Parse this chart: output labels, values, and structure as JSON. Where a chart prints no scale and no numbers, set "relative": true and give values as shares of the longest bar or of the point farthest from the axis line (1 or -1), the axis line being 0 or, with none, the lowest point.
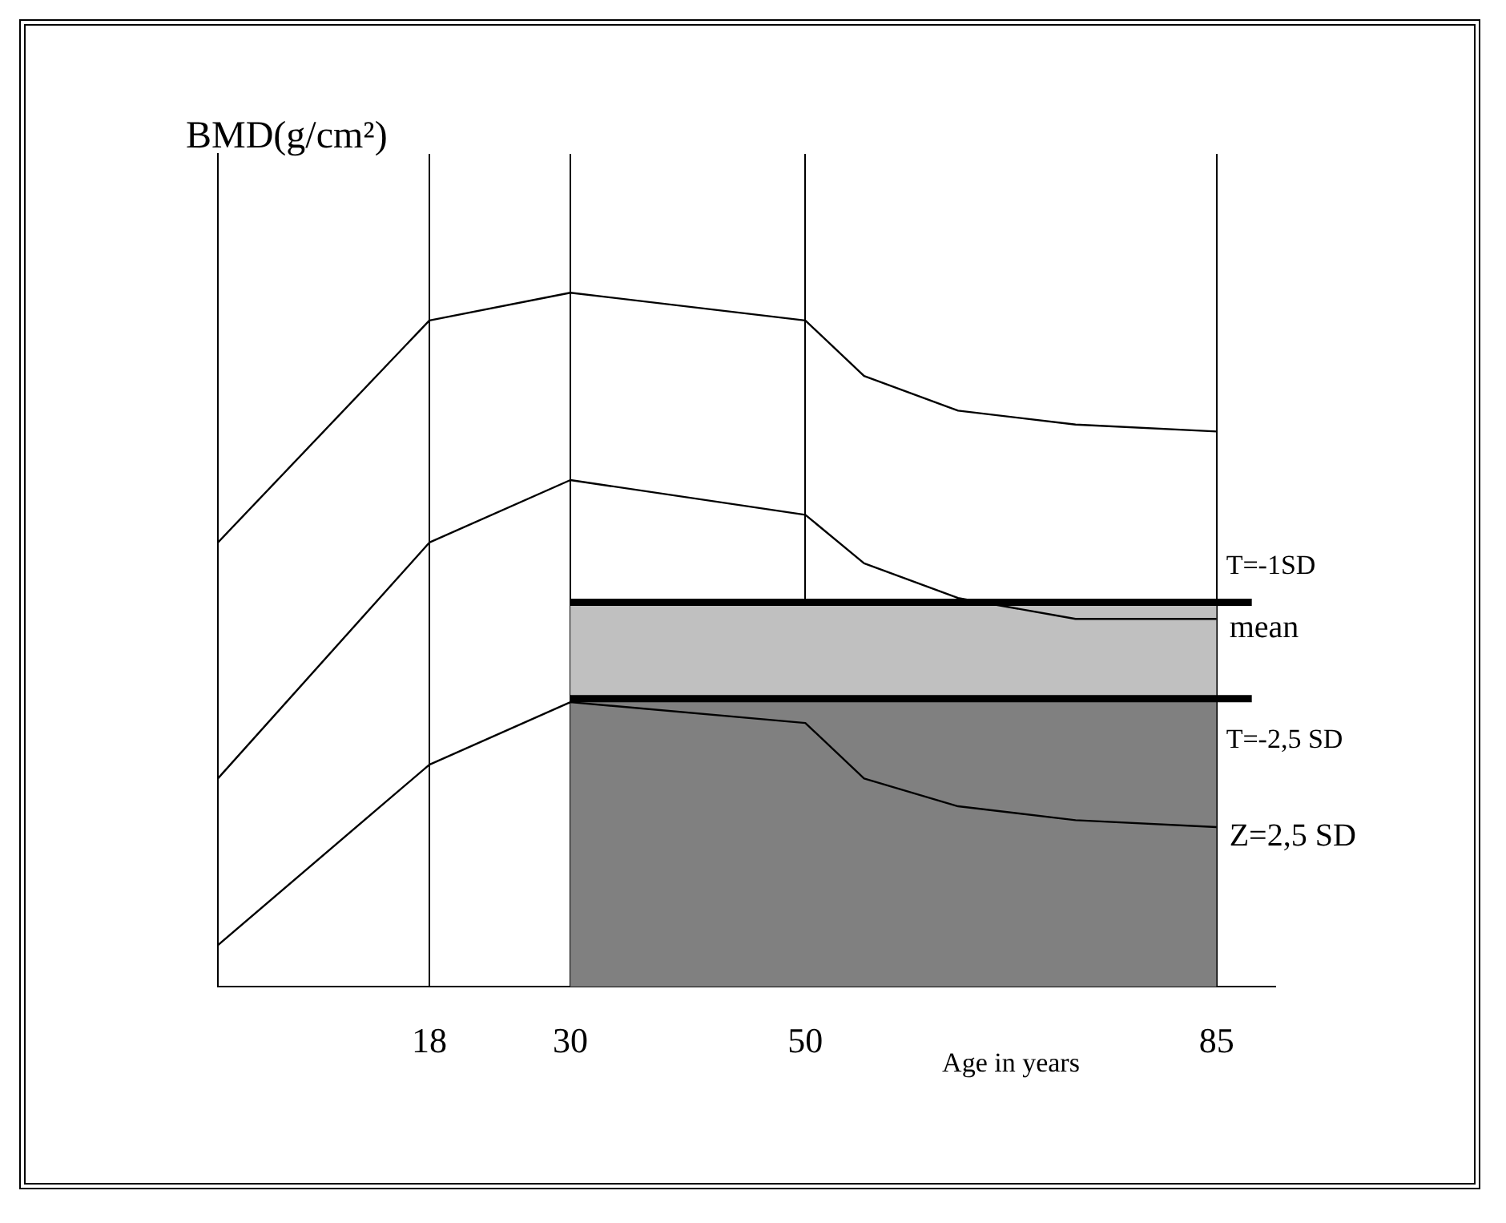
{
  "chart_data": {
    "type": "line",
    "relative": true,
    "ylabel": "BMD(g/cm²)",
    "xlabel": "Age in years",
    "xlim": [
      0,
      90
    ],
    "xticks": [
      18,
      30,
      50,
      85
    ],
    "grid": "x",
    "marker": "none",
    "line_style": "solid",
    "legend": false,
    "series": [
      {
        "type": "area",
        "color": "#808080",
        "x": [
          30,
          85
        ],
        "values": [
          0.415,
          0.415
        ]
      },
      {
        "type": "area",
        "color": "#c0c0c0",
        "x": [
          30,
          85
        ],
        "values": [
          0.554,
          0.554
        ]
      },
      {
        "color": "#000000",
        "x": [
          0,
          18,
          30,
          50,
          55,
          63,
          73,
          85
        ],
        "values": [
          0.64,
          0.96,
          1.0,
          0.96,
          0.88,
          0.83,
          0.81,
          0.8
        ]
      },
      {
        "name": "mean",
        "color": "#000000",
        "x": [
          0,
          18,
          30,
          50,
          55,
          63,
          73,
          85
        ],
        "values": [
          0.3,
          0.64,
          0.73,
          0.68,
          0.61,
          0.56,
          0.53,
          0.53
        ]
      },
      {
        "name": "Z=2,5 SD",
        "color": "#000000",
        "x": [
          0,
          18,
          30,
          50,
          55,
          63,
          73,
          85
        ],
        "values": [
          0.06,
          0.32,
          0.41,
          0.38,
          0.3,
          0.26,
          0.24,
          0.23
        ]
      },
      {
        "name": "T=-1SD",
        "color": "#000000",
        "x": [
          30,
          88
        ],
        "values": [
          0.554,
          0.554
        ]
      },
      {
        "name": "T=-2,5 SD",
        "color": "#000000",
        "x": [
          30,
          88
        ],
        "values": [
          0.415,
          0.415
        ]
      }
    ]
  }
}
